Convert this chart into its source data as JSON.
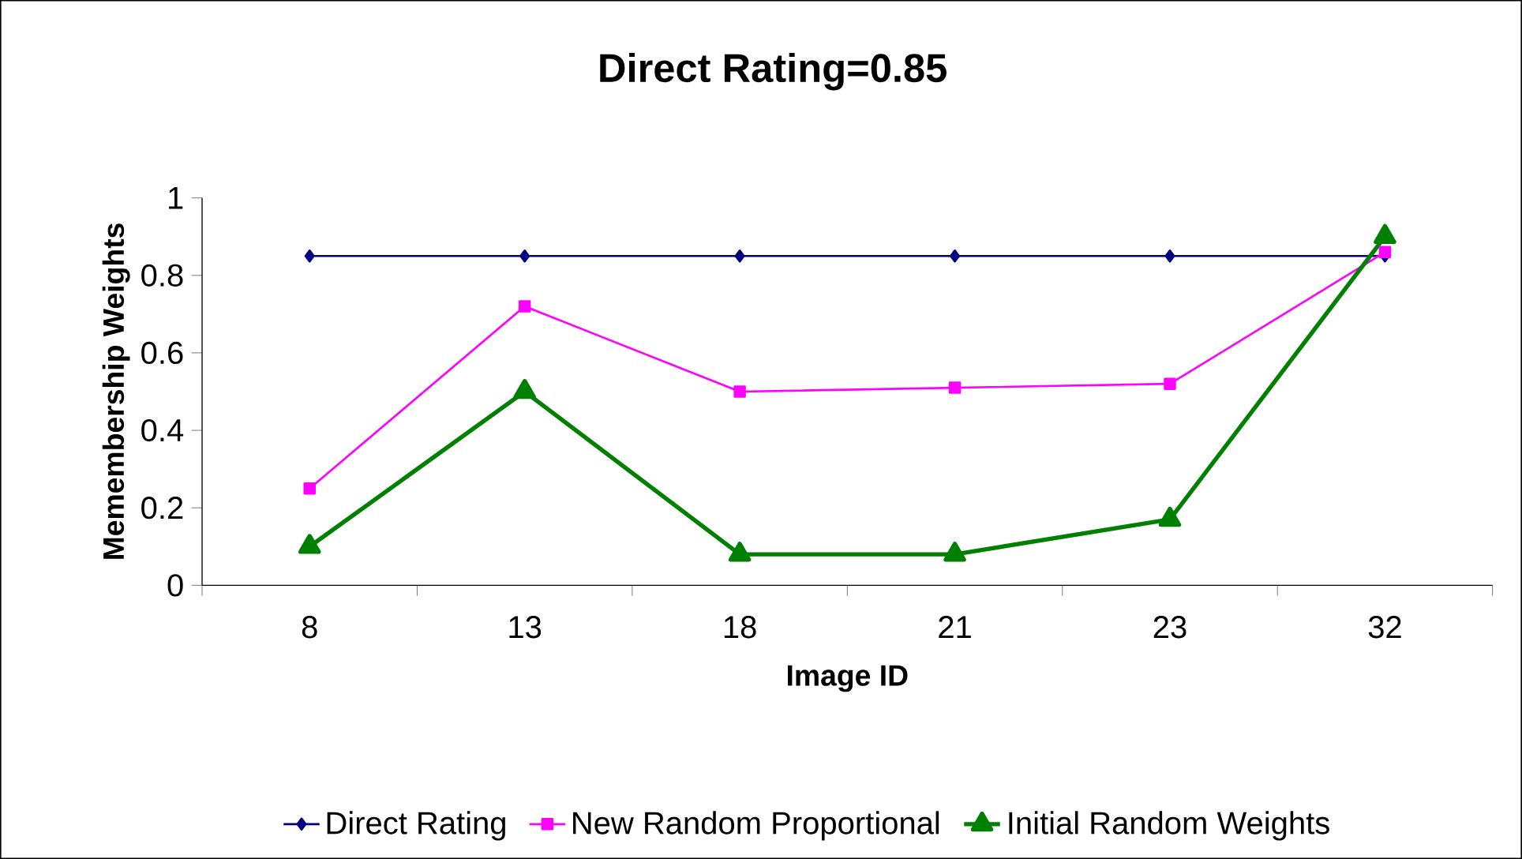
{
  "chart_data": {
    "type": "line",
    "title": "Direct Rating=0.85",
    "xlabel": "Image ID",
    "ylabel": "Memembership Weights",
    "categories": [
      "8",
      "13",
      "18",
      "21",
      "23",
      "32"
    ],
    "series": [
      {
        "name": "Direct Rating",
        "color": "#000080",
        "marker": "diamond",
        "values": [
          0.85,
          0.85,
          0.85,
          0.85,
          0.85,
          0.85
        ]
      },
      {
        "name": "New Random Proportional",
        "color": "#ff00ff",
        "marker": "square",
        "values": [
          0.25,
          0.72,
          0.5,
          0.51,
          0.52,
          0.86
        ]
      },
      {
        "name": "Initial Random Weights",
        "color": "#008000",
        "marker": "triangle",
        "values": [
          0.1,
          0.5,
          0.08,
          0.08,
          0.17,
          0.9
        ]
      }
    ],
    "ylim": [
      0,
      1
    ],
    "yticks": [
      0,
      0.2,
      0.4,
      0.6,
      0.8,
      1
    ],
    "grid": false,
    "legend": "bottom"
  }
}
